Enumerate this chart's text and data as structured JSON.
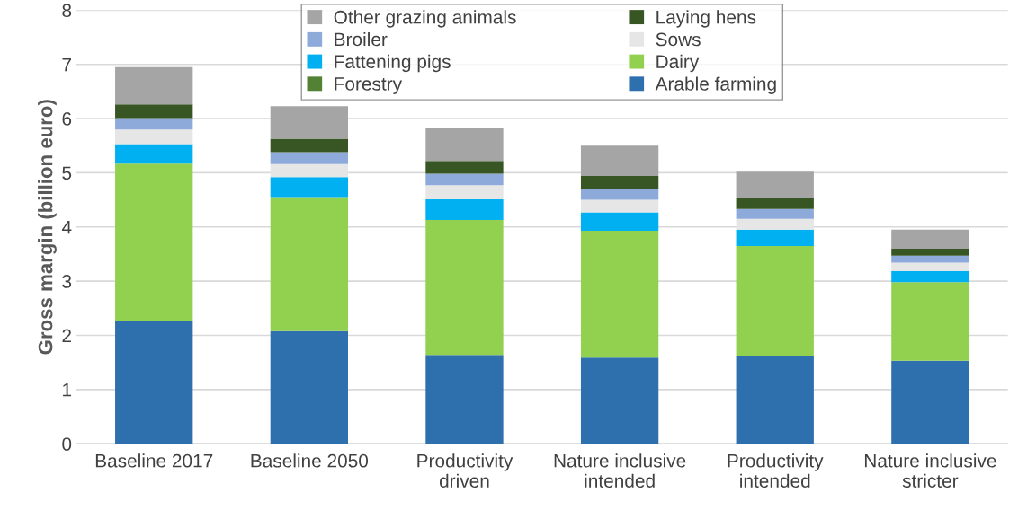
{
  "chart_data": {
    "type": "bar",
    "stacked": true,
    "ylabel": "Gross margin (billion euro)",
    "categories": [
      "Baseline 2017",
      "Baseline 2050",
      "Productivity\ndriven",
      "Nature inclusive\nintended",
      "Productivity\nintended",
      "Nature inclusive\nstricter"
    ],
    "series": [
      {
        "name": "Arable farming",
        "color": "#2e6fad",
        "values": [
          2.27,
          2.08,
          1.64,
          1.59,
          1.61,
          1.53
        ]
      },
      {
        "name": "Forestry",
        "color": "#548235",
        "values": [
          0,
          0,
          0,
          0,
          0,
          0
        ]
      },
      {
        "name": "Dairy",
        "color": "#92d050",
        "values": [
          2.9,
          2.47,
          2.49,
          2.34,
          2.04,
          1.45
        ]
      },
      {
        "name": "Fattening pigs",
        "color": "#00b0f0",
        "values": [
          0.36,
          0.37,
          0.38,
          0.34,
          0.3,
          0.21
        ]
      },
      {
        "name": "Sows",
        "color": "#e6e6e6",
        "values": [
          0.27,
          0.24,
          0.26,
          0.23,
          0.2,
          0.15
        ]
      },
      {
        "name": "Broiler",
        "color": "#8eaadb",
        "values": [
          0.21,
          0.22,
          0.21,
          0.2,
          0.18,
          0.13
        ]
      },
      {
        "name": "Laying hens",
        "color": "#375623",
        "values": [
          0.25,
          0.25,
          0.24,
          0.24,
          0.2,
          0.13
        ]
      },
      {
        "name": "Other grazing animals",
        "color": "#a5a5a5",
        "values": [
          0.69,
          0.6,
          0.61,
          0.56,
          0.49,
          0.35
        ]
      }
    ],
    "ylim": [
      0,
      8
    ],
    "yticks": [
      0,
      1,
      2,
      3,
      4,
      5,
      6,
      7,
      8
    ],
    "grid": "y",
    "legend": "top"
  }
}
